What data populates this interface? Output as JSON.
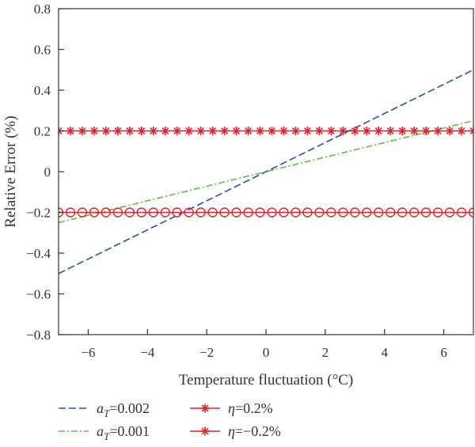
{
  "chart_data": {
    "type": "line",
    "title": "",
    "xlabel": "Temperature fluctuation (°C)",
    "ylabel": "Relative Error (%)",
    "xlim": [
      -7,
      7
    ],
    "ylim": [
      -0.8,
      0.8
    ],
    "xticks": [
      -6,
      -4,
      -2,
      0,
      2,
      4,
      6
    ],
    "xtick_labels": [
      "−6",
      "−4",
      "−2",
      "0",
      "2",
      "4",
      "6"
    ],
    "yticks": [
      -0.8,
      -0.6,
      -0.4,
      -0.2,
      0,
      0.2,
      0.4,
      0.6,
      0.8
    ],
    "ytick_labels": [
      "−0.8",
      "−0.6",
      "−0.4",
      "−0.2",
      "0",
      "0.2",
      "0.4",
      "0.6",
      "0.8"
    ],
    "grid": false,
    "legend_position": "below",
    "series": [
      {
        "name": "aT=0.002",
        "legend_symbol": "a",
        "legend_subscript": "T",
        "legend_rest": "=0.002",
        "color": "#2a4db3",
        "style": "dashed",
        "marker": "none",
        "x": [
          -7,
          7
        ],
        "y": [
          -0.5,
          0.5
        ]
      },
      {
        "name": "aT=0.001",
        "legend_symbol": "a",
        "legend_subscript": "T",
        "legend_rest": "=0.001",
        "color": "#55c43c",
        "style": "dashdot",
        "marker": "none",
        "x": [
          -7,
          7
        ],
        "y": [
          -0.25,
          0.25
        ]
      },
      {
        "name": "η=0.2%",
        "legend_symbol": "η",
        "legend_subscript": "",
        "legend_rest": "=0.2%",
        "color": "#e8202a",
        "style": "solid",
        "marker": "asterisk",
        "x": [
          -7,
          -6.6,
          -6.2,
          -5.8,
          -5.4,
          -5.0,
          -4.6,
          -4.2,
          -3.8,
          -3.4,
          -3.0,
          -2.6,
          -2.2,
          -1.8,
          -1.4,
          -1.0,
          -0.6,
          -0.2,
          0.2,
          0.6,
          1.0,
          1.4,
          1.8,
          2.2,
          2.6,
          3.0,
          3.4,
          3.8,
          4.2,
          4.6,
          5.0,
          5.4,
          5.8,
          6.2,
          6.6,
          7.0
        ],
        "y": [
          0.2,
          0.2,
          0.2,
          0.2,
          0.2,
          0.2,
          0.2,
          0.2,
          0.2,
          0.2,
          0.2,
          0.2,
          0.2,
          0.2,
          0.2,
          0.2,
          0.2,
          0.2,
          0.2,
          0.2,
          0.2,
          0.2,
          0.2,
          0.2,
          0.2,
          0.2,
          0.2,
          0.2,
          0.2,
          0.2,
          0.2,
          0.2,
          0.2,
          0.2,
          0.2,
          0.2
        ]
      },
      {
        "name": "η=−0.2%",
        "legend_symbol": "η",
        "legend_subscript": "",
        "legend_rest": "=−0.2%",
        "color": "#e8202a",
        "style": "solid",
        "marker": "circle",
        "legend_marker": "asterisk",
        "x": [
          -7,
          -6.6,
          -6.2,
          -5.8,
          -5.4,
          -5.0,
          -4.6,
          -4.2,
          -3.8,
          -3.4,
          -3.0,
          -2.6,
          -2.2,
          -1.8,
          -1.4,
          -1.0,
          -0.6,
          -0.2,
          0.2,
          0.6,
          1.0,
          1.4,
          1.8,
          2.2,
          2.6,
          3.0,
          3.4,
          3.8,
          4.2,
          4.6,
          5.0,
          5.4,
          5.8,
          6.2,
          6.6,
          7.0
        ],
        "y": [
          -0.2,
          -0.2,
          -0.2,
          -0.2,
          -0.2,
          -0.2,
          -0.2,
          -0.2,
          -0.2,
          -0.2,
          -0.2,
          -0.2,
          -0.2,
          -0.2,
          -0.2,
          -0.2,
          -0.2,
          -0.2,
          -0.2,
          -0.2,
          -0.2,
          -0.2,
          -0.2,
          -0.2,
          -0.2,
          -0.2,
          -0.2,
          -0.2,
          -0.2,
          -0.2,
          -0.2,
          -0.2,
          -0.2,
          -0.2,
          -0.2,
          -0.2
        ]
      }
    ]
  }
}
